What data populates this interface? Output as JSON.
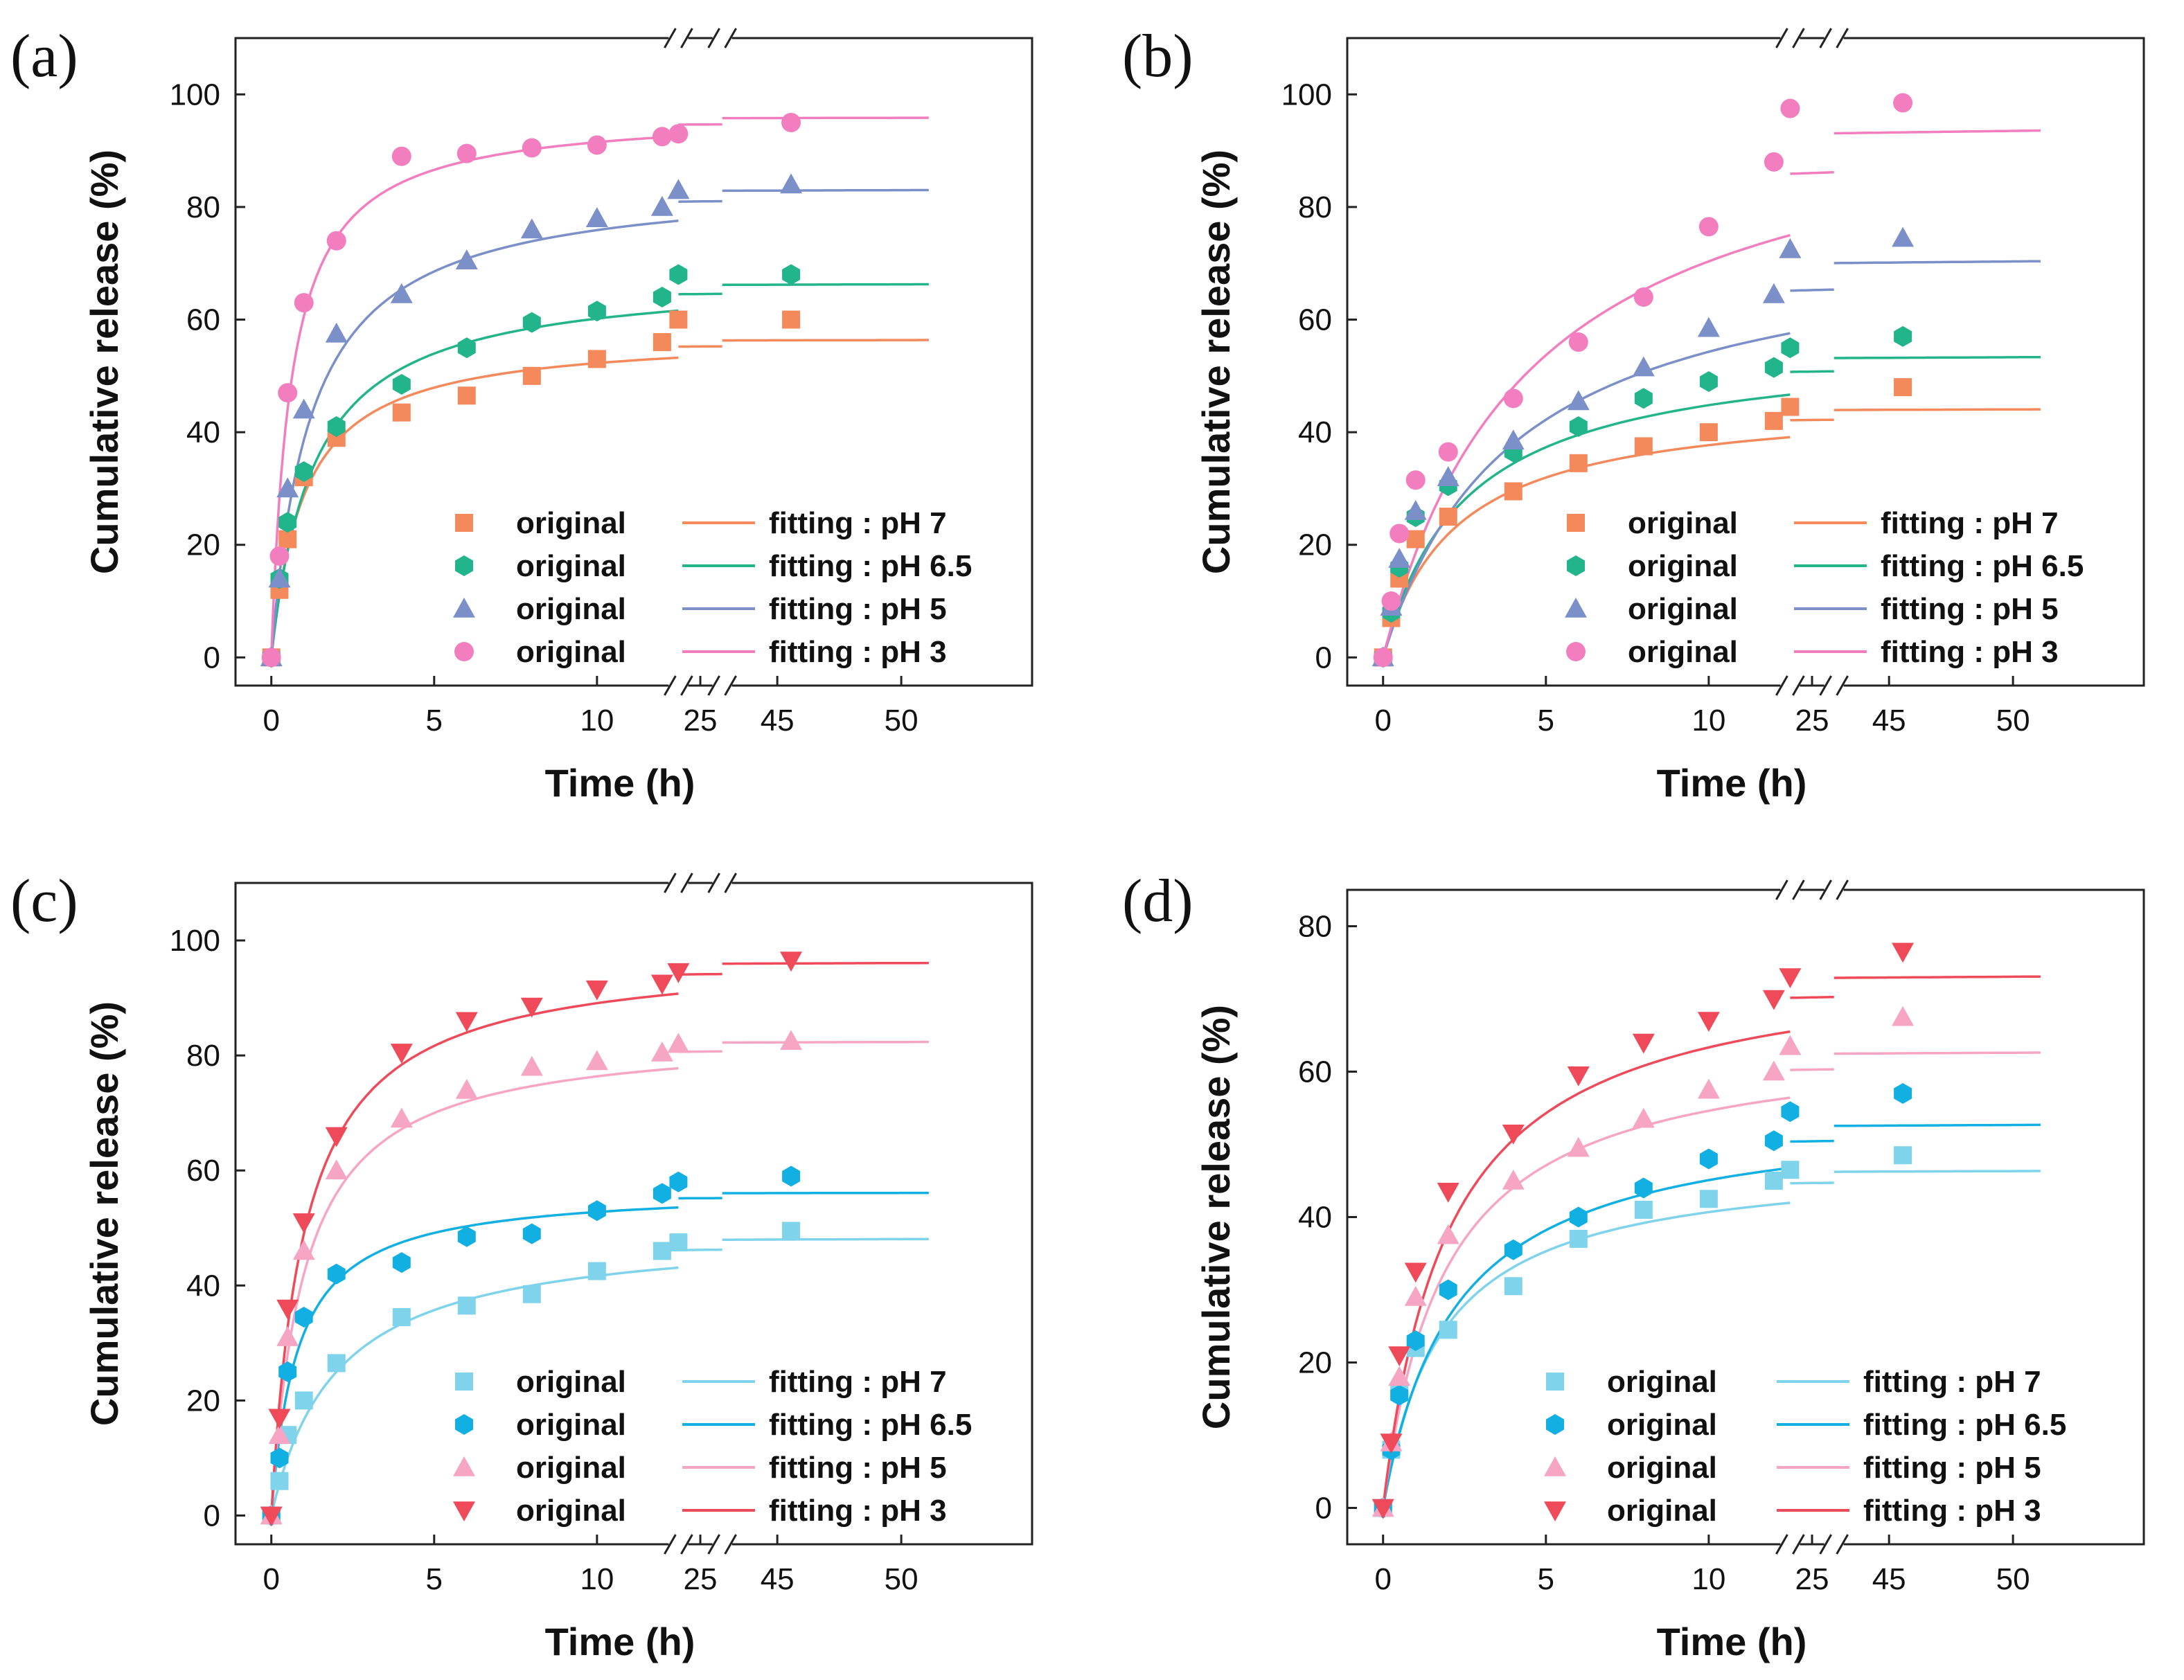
{
  "chart_data": [
    {
      "type": "scatter",
      "panel_label": "(a)",
      "xlabel": "Time (h)",
      "ylabel": "Cumulative release (%)",
      "ylim": [
        -5,
        110
      ],
      "yticks": [
        0,
        20,
        40,
        60,
        80,
        100
      ],
      "xticks": [
        0,
        5,
        10,
        25,
        45,
        50
      ],
      "xtick_labels": [
        "0",
        "5",
        "10",
        "25",
        "45",
        "50"
      ],
      "axis_breaks": [
        {
          "from": 12.5,
          "to": 24
        },
        {
          "from": 24.5,
          "to": 47
        }
      ],
      "segments": [
        [
          0,
          12.5
        ],
        [
          24,
          24.5
        ],
        [
          47,
          50
        ]
      ],
      "series": [
        {
          "name": "original",
          "fit_label": "fitting : pH 7",
          "color": "#f4895c",
          "marker": "square",
          "x": [
            0,
            0.25,
            0.5,
            1,
            2,
            4,
            6,
            8,
            10,
            12,
            24,
            48
          ],
          "y": [
            0,
            12,
            21,
            32,
            39,
            43.5,
            46.5,
            50,
            53,
            56,
            60,
            60
          ],
          "fit": {
            "max": 57.5,
            "k": 1.0
          }
        },
        {
          "name": "original",
          "fit_label": "fitting : pH 6.5",
          "color": "#22b48a",
          "marker": "hexagon",
          "x": [
            0,
            0.25,
            0.5,
            1,
            2,
            4,
            6,
            8,
            10,
            12,
            24,
            48
          ],
          "y": [
            0,
            14,
            24,
            33,
            41,
            48.5,
            55,
            59.5,
            61.5,
            64,
            68,
            68
          ],
          "fit": {
            "max": 68,
            "k": 1.3
          }
        },
        {
          "name": "original",
          "fit_label": "fitting : pH 5",
          "color": "#7b8fc8",
          "marker": "triangle",
          "x": [
            0,
            0.25,
            0.5,
            1,
            2,
            4,
            6,
            8,
            10,
            12,
            24,
            48
          ],
          "y": [
            0,
            14,
            30,
            44,
            57.5,
            64.5,
            70.5,
            76,
            78,
            80,
            83,
            84
          ],
          "fit": {
            "max": 85,
            "k": 1.2
          }
        },
        {
          "name": "original",
          "fit_label": "fitting : pH 3",
          "color": "#f27ec0",
          "marker": "circle",
          "x": [
            0,
            0.25,
            0.5,
            1,
            2,
            4,
            6,
            8,
            10,
            12,
            24,
            48
          ],
          "y": [
            0,
            18,
            47,
            63,
            74,
            89,
            89.5,
            90.5,
            91,
            92.5,
            93,
            95
          ],
          "fit": {
            "max": 97,
            "k": 0.6
          }
        }
      ]
    },
    {
      "type": "scatter",
      "panel_label": "(b)",
      "xlabel": "Time (h)",
      "ylabel": "Cumulative release (%)",
      "ylim": [
        -5,
        110
      ],
      "yticks": [
        0,
        20,
        40,
        60,
        80,
        100
      ],
      "xticks": [
        0,
        5,
        10,
        25,
        45,
        50
      ],
      "xtick_labels": [
        "0",
        "5",
        "10",
        "25",
        "45",
        "50"
      ],
      "axis_breaks": [
        {
          "from": 12.5,
          "to": 24
        },
        {
          "from": 24.5,
          "to": 47
        }
      ],
      "segments": [
        [
          0,
          12.5
        ],
        [
          24,
          24.5
        ],
        [
          47,
          50
        ]
      ],
      "series": [
        {
          "name": "original",
          "fit_label": "fitting : pH 7",
          "color": "#f4895c",
          "marker": "square",
          "x": [
            0,
            0.25,
            0.5,
            1,
            2,
            4,
            6,
            8,
            10,
            12,
            24,
            48
          ],
          "y": [
            0,
            7,
            14,
            21,
            25,
            29.5,
            34.5,
            37.5,
            40,
            42,
            44.5,
            48
          ],
          "fit": {
            "max": 46,
            "k": 2.2
          }
        },
        {
          "name": "original",
          "fit_label": "fitting : pH 6.5",
          "color": "#22b48a",
          "marker": "hexagon",
          "x": [
            0,
            0.25,
            0.5,
            1,
            2,
            4,
            6,
            8,
            10,
            12,
            24,
            48
          ],
          "y": [
            0,
            8,
            16,
            25,
            30.5,
            36.5,
            41,
            46,
            49,
            51.5,
            55,
            57
          ],
          "fit": {
            "max": 56,
            "k": 2.5
          }
        },
        {
          "name": "original",
          "fit_label": "fitting : pH 5",
          "color": "#7b8fc8",
          "marker": "triangle",
          "x": [
            0,
            0.25,
            0.5,
            1,
            2,
            4,
            6,
            8,
            10,
            12,
            24,
            48
          ],
          "y": [
            0,
            9,
            17.5,
            26,
            32,
            38.5,
            45.5,
            51.5,
            58.5,
            64.5,
            72.5,
            74.5
          ],
          "fit": {
            "max": 76,
            "k": 4.0
          }
        },
        {
          "name": "original",
          "fit_label": "fitting : pH 3",
          "color": "#f27ec0",
          "marker": "circle",
          "x": [
            0,
            0.25,
            0.5,
            1,
            2,
            4,
            6,
            8,
            10,
            12,
            24,
            48
          ],
          "y": [
            0,
            10,
            22,
            31.5,
            36.5,
            46,
            56,
            64,
            76.5,
            88,
            97.5,
            98.5
          ],
          "fit": {
            "max": 102,
            "k": 4.5
          }
        }
      ]
    },
    {
      "type": "scatter",
      "panel_label": "(c)",
      "xlabel": "Time (h)",
      "ylabel": "Cumulative release (%)",
      "ylim": [
        -5,
        110
      ],
      "yticks": [
        0,
        20,
        40,
        60,
        80,
        100
      ],
      "xticks": [
        0,
        5,
        10,
        25,
        45,
        50
      ],
      "xtick_labels": [
        "0",
        "5",
        "10",
        "25",
        "45",
        "50"
      ],
      "axis_breaks": [
        {
          "from": 12.5,
          "to": 24
        },
        {
          "from": 24.5,
          "to": 47
        }
      ],
      "segments": [
        [
          0,
          12.5
        ],
        [
          24,
          24.5
        ],
        [
          47,
          50
        ]
      ],
      "series": [
        {
          "name": "original",
          "fit_label": "fitting : pH 7",
          "color": "#7fd3ea",
          "marker": "square",
          "x": [
            0,
            0.25,
            0.5,
            1,
            2,
            4,
            6,
            8,
            10,
            12,
            24,
            48
          ],
          "y": [
            0,
            6,
            14,
            20,
            26.5,
            34.5,
            36.5,
            38.5,
            42.5,
            46,
            47.5,
            49.5
          ],
          "fit": {
            "max": 50,
            "k": 2.0
          }
        },
        {
          "name": "original",
          "fit_label": "fitting : pH 6.5",
          "color": "#12b0e2",
          "marker": "hexagon",
          "x": [
            0,
            0.25,
            0.5,
            1,
            2,
            4,
            6,
            8,
            10,
            12,
            24,
            48
          ],
          "y": [
            0,
            10,
            25,
            34.5,
            42,
            44,
            48.5,
            49,
            53,
            56,
            58,
            59
          ],
          "fit": {
            "max": 57,
            "k": 0.8
          }
        },
        {
          "name": "original",
          "fit_label": "fitting : pH 5",
          "color": "#f7a5c4",
          "marker": "triangle",
          "x": [
            0,
            0.25,
            0.5,
            1,
            2,
            4,
            6,
            8,
            10,
            12,
            24,
            48
          ],
          "y": [
            0,
            14,
            31,
            46,
            60,
            69,
            74,
            78,
            79,
            80.5,
            82,
            82.5
          ],
          "fit": {
            "max": 84,
            "k": 1.0
          }
        },
        {
          "name": "original",
          "fit_label": "fitting : pH 3",
          "color": "#ee4a5a",
          "marker": "triangle-down",
          "x": [
            0,
            0.25,
            0.5,
            1,
            2,
            4,
            6,
            8,
            10,
            12,
            24,
            48
          ],
          "y": [
            0,
            17,
            36,
            51,
            66,
            80.5,
            86,
            88.5,
            91.5,
            92.5,
            94.5,
            96.5
          ],
          "fit": {
            "max": 98,
            "k": 1.0
          }
        }
      ]
    },
    {
      "type": "scatter",
      "panel_label": "(d)",
      "xlabel": "Time (h)",
      "ylabel": "Cumulative release (%)",
      "ylim": [
        -5,
        85
      ],
      "yticks": [
        0,
        20,
        40,
        60,
        80
      ],
      "xticks": [
        0,
        5,
        10,
        25,
        45,
        50
      ],
      "xtick_labels": [
        "0",
        "5",
        "10",
        "25",
        "45",
        "50"
      ],
      "axis_breaks": [
        {
          "from": 12.5,
          "to": 24
        },
        {
          "from": 24.5,
          "to": 47
        }
      ],
      "segments": [
        [
          0,
          12.5
        ],
        [
          24,
          24.5
        ],
        [
          47,
          50
        ]
      ],
      "series": [
        {
          "name": "original",
          "fit_label": "fitting : pH 7",
          "color": "#7fd3ea",
          "marker": "square",
          "x": [
            0,
            0.25,
            0.5,
            1,
            2,
            4,
            6,
            8,
            10,
            12,
            24,
            48
          ],
          "y": [
            0,
            8,
            16,
            22,
            24.5,
            30.5,
            37,
            41,
            42.5,
            45,
            46.5,
            48.5
          ],
          "fit": {
            "max": 48,
            "k": 1.8
          }
        },
        {
          "name": "original",
          "fit_label": "fitting : pH 6.5",
          "color": "#12b0e2",
          "marker": "hexagon",
          "x": [
            0,
            0.25,
            0.5,
            1,
            2,
            4,
            6,
            8,
            10,
            12,
            24,
            48
          ],
          "y": [
            0,
            8,
            15.5,
            23,
            30,
            35.5,
            40,
            44,
            48,
            50.5,
            54.5,
            57
          ],
          "fit": {
            "max": 55,
            "k": 2.2
          }
        },
        {
          "name": "original",
          "fit_label": "fitting : pH 5",
          "color": "#f7a5c4",
          "marker": "triangle",
          "x": [
            0,
            0.25,
            0.5,
            1,
            2,
            4,
            6,
            8,
            10,
            12,
            24,
            48
          ],
          "y": [
            0,
            9,
            18,
            29,
            37.5,
            45,
            49.5,
            53.5,
            57.5,
            60,
            63.5,
            67.5
          ],
          "fit": {
            "max": 65,
            "k": 1.9
          }
        },
        {
          "name": "original",
          "fit_label": "fitting : pH 3",
          "color": "#ee4a5a",
          "marker": "triangle-down",
          "x": [
            0,
            0.25,
            0.5,
            1,
            2,
            4,
            6,
            8,
            10,
            12,
            24,
            48
          ],
          "y": [
            0,
            9,
            21,
            32.5,
            43.5,
            51.5,
            59.5,
            64,
            67,
            70,
            73,
            76.5
          ],
          "fit": {
            "max": 76,
            "k": 2.0
          }
        }
      ]
    }
  ]
}
